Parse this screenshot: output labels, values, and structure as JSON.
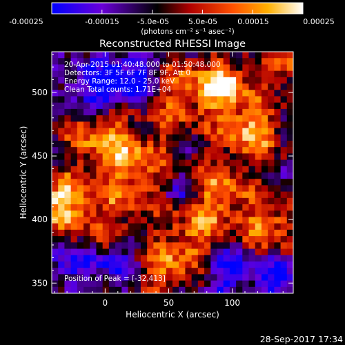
{
  "colorbar": {
    "tick_labels": [
      "-0.00025",
      "-0.00015",
      "-5.0e-05",
      "5.0e-05",
      "0.00015",
      "0.00025"
    ],
    "tick_values": [
      -0.00025,
      -0.00015,
      -5e-05,
      5e-05,
      0.00015,
      0.00025
    ],
    "range": [
      -0.00025,
      0.00025
    ],
    "unit_label": "(photons cm⁻² s⁻¹ asec⁻²)",
    "colors": [
      "#0000ff",
      "#6a00d8",
      "#000000",
      "#b00000",
      "#ff5000",
      "#ffb000",
      "#ffffff"
    ]
  },
  "chart_data": {
    "type": "heatmap",
    "title": "Reconstructed RHESSI Image",
    "xlabel": "Heliocentric X (arcsec)",
    "ylabel": "Heliocentric Y (arcsec)",
    "xlim": [
      -42,
      148
    ],
    "ylim": [
      342,
      532
    ],
    "xticks": [
      0,
      50,
      100
    ],
    "xtick_labels": [
      "0",
      "50",
      "100"
    ],
    "yticks": [
      350,
      400,
      450,
      500
    ],
    "ytick_labels": [
      "350",
      "400",
      "450",
      "500"
    ],
    "info_lines": [
      "20-Apr-2015 01:40:48.000 to 01:50:48.000",
      "Detectors: 3F 5F 6F 7F 8F 9F, Att 0",
      "Energy Range: 12.0 - 25.0 keV",
      "Clean     Total counts: 1.71E+04"
    ],
    "peak_label": "Position of Peak = [-32,413]",
    "peak": [
      -32,
      413
    ]
  },
  "footer": {
    "timestamp": "28-Sep-2017 17:34"
  }
}
